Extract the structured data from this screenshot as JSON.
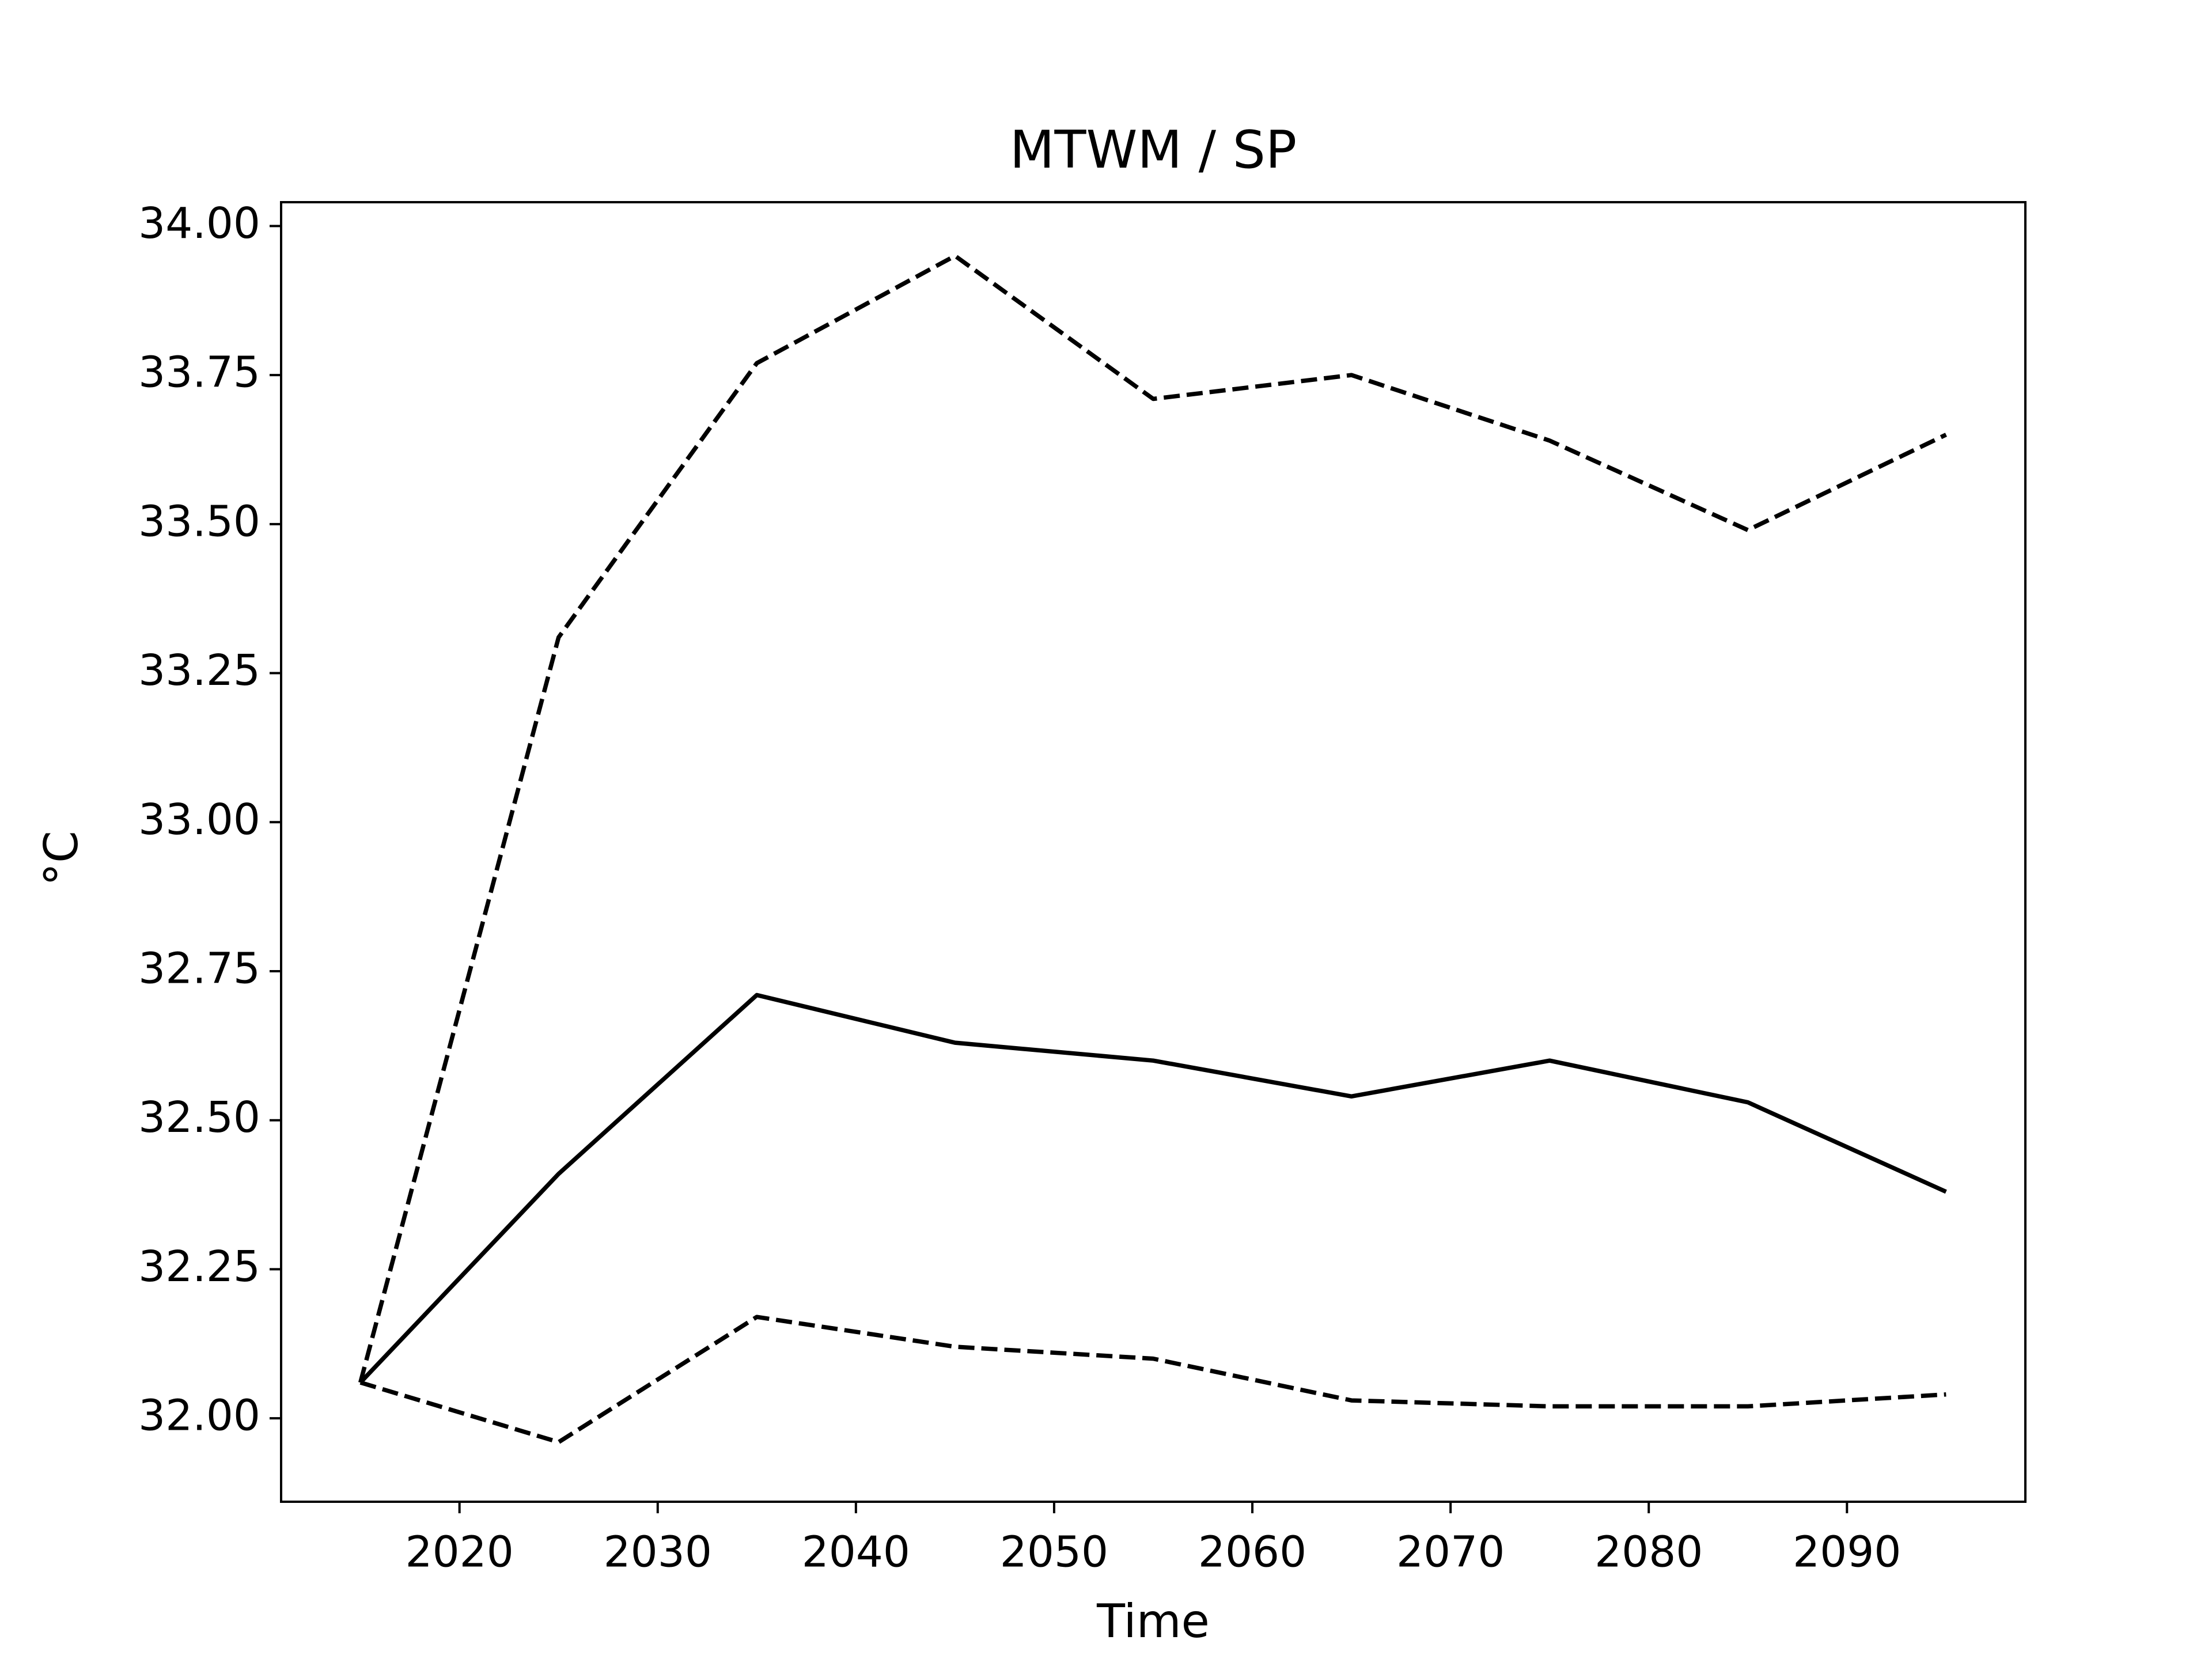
{
  "chart_data": {
    "type": "line",
    "title": "MTWM / SP",
    "xlabel": "Time",
    "ylabel": "°C",
    "x": [
      2015,
      2025,
      2035,
      2045,
      2055,
      2065,
      2075,
      2085,
      2095
    ],
    "series": [
      {
        "color": "#000000",
        "linestyle": "dashed",
        "values": [
          32.06,
          33.31,
          33.77,
          33.95,
          33.71,
          33.75,
          33.64,
          33.49,
          33.65
        ]
      },
      {
        "color": "#000000",
        "linestyle": "solid",
        "values": [
          32.06,
          32.41,
          32.71,
          32.63,
          32.6,
          32.54,
          32.6,
          32.53,
          32.38
        ]
      },
      {
        "color": "#000000",
        "linestyle": "dashed",
        "values": [
          32.06,
          31.96,
          32.17,
          32.12,
          32.1,
          32.03,
          32.02,
          32.02,
          32.04
        ]
      }
    ],
    "xlim": [
      2011,
      2099
    ],
    "xticks": [
      2020,
      2030,
      2040,
      2050,
      2060,
      2070,
      2080,
      2090
    ],
    "ylim": [
      31.86,
      34.04
    ],
    "yticks": [
      {
        "value": 32,
        "label": "32.00"
      },
      {
        "value": 32.25,
        "label": "32.25"
      },
      {
        "value": 32.5,
        "label": "32.50"
      },
      {
        "value": 32.75,
        "label": "32.75"
      },
      {
        "value": 33,
        "label": "33.00"
      },
      {
        "value": 33.25,
        "label": "33.25"
      },
      {
        "value": 33.5,
        "label": "33.50"
      },
      {
        "value": 33.75,
        "label": "33.75"
      },
      {
        "value": 34,
        "label": "34.00"
      }
    ],
    "grid": false
  }
}
